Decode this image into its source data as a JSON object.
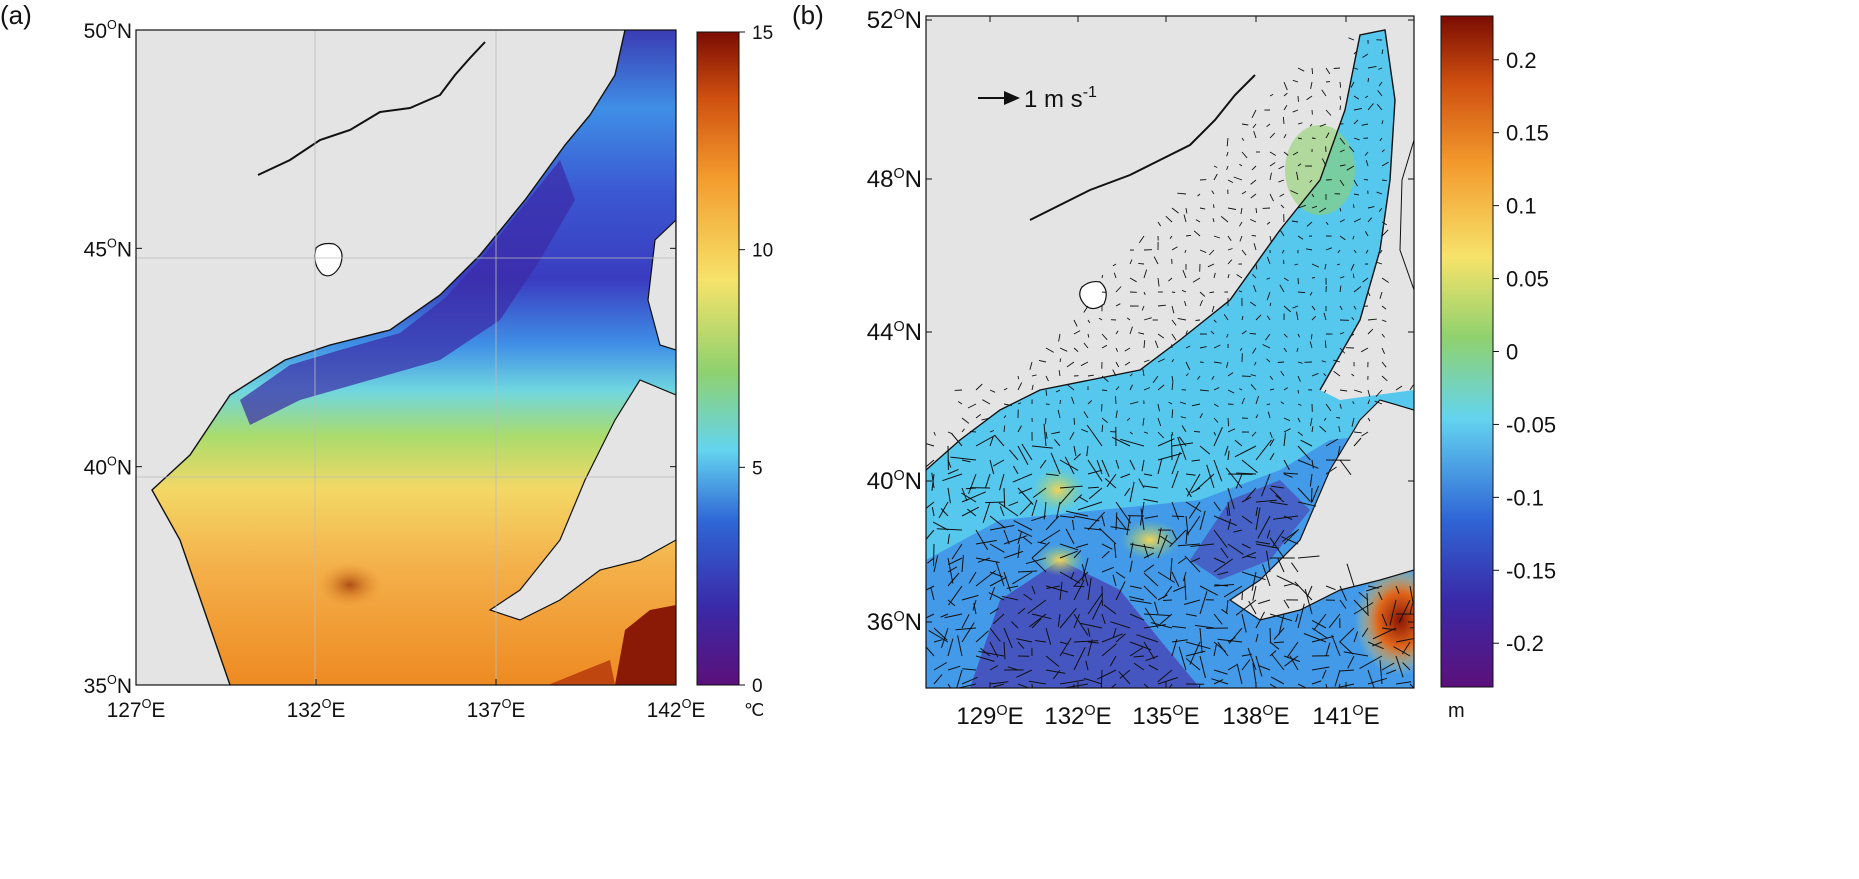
{
  "panel_a": {
    "label": "(a)",
    "lat_ticks": [
      {
        "deg": "50",
        "sup": "O",
        "hemi": "N"
      },
      {
        "deg": "45",
        "sup": "O",
        "hemi": "N"
      },
      {
        "deg": "40",
        "sup": "O",
        "hemi": "N"
      },
      {
        "deg": "35",
        "sup": "O",
        "hemi": "N"
      }
    ],
    "lon_ticks": [
      {
        "deg": "127",
        "sup": "O",
        "hemi": "E"
      },
      {
        "deg": "132",
        "sup": "O",
        "hemi": "E"
      },
      {
        "deg": "137",
        "sup": "O",
        "hemi": "E"
      },
      {
        "deg": "142",
        "sup": "O",
        "hemi": "E"
      }
    ],
    "colorbar": {
      "ticks": [
        "15",
        "10",
        "5",
        "0"
      ],
      "unit": "℃",
      "min": 0,
      "max": 15
    }
  },
  "panel_b": {
    "label": "(b)",
    "lat_ticks": [
      {
        "deg": "52",
        "sup": "O",
        "hemi": "N"
      },
      {
        "deg": "48",
        "sup": "O",
        "hemi": "N"
      },
      {
        "deg": "44",
        "sup": "O",
        "hemi": "N"
      },
      {
        "deg": "40",
        "sup": "O",
        "hemi": "N"
      },
      {
        "deg": "36",
        "sup": "O",
        "hemi": "N"
      }
    ],
    "lon_ticks": [
      {
        "deg": "129",
        "sup": "O",
        "hemi": "E"
      },
      {
        "deg": "132",
        "sup": "O",
        "hemi": "E"
      },
      {
        "deg": "135",
        "sup": "O",
        "hemi": "E"
      },
      {
        "deg": "138",
        "sup": "O",
        "hemi": "E"
      },
      {
        "deg": "141",
        "sup": "O",
        "hemi": "E"
      }
    ],
    "scale_arrow": {
      "text": "1 m s",
      "sup": "-1"
    },
    "colorbar": {
      "ticks": [
        "0.2",
        "0.15",
        "0.1",
        "0.05",
        "0",
        "-0.05",
        "-0.1",
        "-0.15",
        "-0.2"
      ],
      "unit": "m",
      "min": -0.23,
      "max": 0.23
    }
  },
  "colors": {
    "land": "#e4e4e4",
    "coast": "#111111",
    "warm_dark": "#7a0c02",
    "orange": "#f39a2c",
    "yellow": "#f6e36a",
    "green": "#8fd16e",
    "cyan": "#64d4ef",
    "blue": "#2f66d6",
    "indigo": "#3a2aa8",
    "purple": "#5b107a"
  }
}
